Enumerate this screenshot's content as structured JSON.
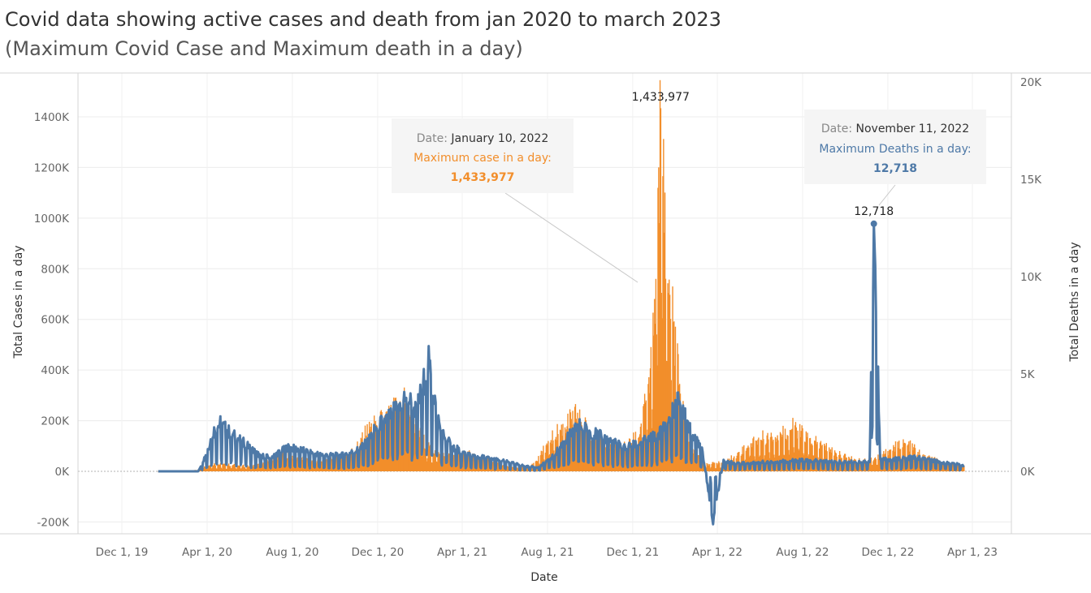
{
  "title": "Covid data showing active cases and death from jan 2020 to march 2023",
  "subtitle": "(Maximum Covid Case and Maximum death in a day)",
  "colors": {
    "cases": "#F28E2B",
    "deaths": "#4E79A7"
  },
  "chart_data": {
    "type": "bar",
    "xlabel": "Date",
    "ylabel": "Total Cases in a day",
    "y2label": "Total Deaths in a day",
    "ylim": [
      -200000,
      1450000
    ],
    "y2lim": [
      -3000,
      20000
    ],
    "x_ticks": [
      "Dec 1, 19",
      "Apr 1, 20",
      "Aug 1, 20",
      "Dec 1, 20",
      "Apr 1, 21",
      "Aug 1, 21",
      "Dec 1, 21",
      "Apr 1, 22",
      "Aug 1, 22",
      "Dec 1, 22",
      "Apr 1, 23"
    ],
    "y_ticks": [
      "-200K",
      "0K",
      "200K",
      "400K",
      "600K",
      "800K",
      "1000K",
      "1200K",
      "1400K"
    ],
    "y2_ticks": [
      "0K",
      "5K",
      "10K",
      "15K",
      "20K"
    ],
    "grid": true,
    "series": [
      {
        "name": "Maximum case in a day",
        "type": "bar",
        "axis": "left",
        "points": [
          [
            "2020-01-22",
            0
          ],
          [
            "2020-03-01",
            500
          ],
          [
            "2020-03-15",
            5000
          ],
          [
            "2020-03-25",
            15000
          ],
          [
            "2020-04-05",
            30000
          ],
          [
            "2020-04-20",
            28000
          ],
          [
            "2020-05-10",
            25000
          ],
          [
            "2020-06-01",
            20000
          ],
          [
            "2020-06-20",
            30000
          ],
          [
            "2020-07-10",
            60000
          ],
          [
            "2020-07-20",
            70000
          ],
          [
            "2020-08-10",
            55000
          ],
          [
            "2020-09-01",
            40000
          ],
          [
            "2020-09-20",
            45000
          ],
          [
            "2020-10-10",
            55000
          ],
          [
            "2020-10-30",
            90000
          ],
          [
            "2020-11-15",
            160000
          ],
          [
            "2020-12-01",
            200000
          ],
          [
            "2020-12-20",
            230000
          ],
          [
            "2021-01-08",
            300000
          ],
          [
            "2021-01-20",
            200000
          ],
          [
            "2021-02-10",
            100000
          ],
          [
            "2021-03-01",
            65000
          ],
          [
            "2021-03-20",
            60000
          ],
          [
            "2021-04-10",
            70000
          ],
          [
            "2021-05-01",
            55000
          ],
          [
            "2021-06-01",
            20000
          ],
          [
            "2021-06-20",
            12000
          ],
          [
            "2021-07-10",
            25000
          ],
          [
            "2021-07-25",
            80000
          ],
          [
            "2021-08-10",
            150000
          ],
          [
            "2021-08-25",
            180000
          ],
          [
            "2021-09-10",
            230000
          ],
          [
            "2021-09-25",
            180000
          ],
          [
            "2021-10-15",
            120000
          ],
          [
            "2021-11-05",
            90000
          ],
          [
            "2021-11-25",
            110000
          ],
          [
            "2021-12-10",
            150000
          ],
          [
            "2021-12-25",
            350000
          ],
          [
            "2022-01-01",
            600000
          ],
          [
            "2022-01-04",
            1000000
          ],
          [
            "2022-01-10",
            1433977
          ],
          [
            "2022-01-14",
            1180000
          ],
          [
            "2022-01-20",
            800000
          ],
          [
            "2022-01-28",
            600000
          ],
          [
            "2022-02-08",
            300000
          ],
          [
            "2022-02-20",
            120000
          ],
          [
            "2022-03-10",
            40000
          ],
          [
            "2022-03-20",
            30000
          ],
          [
            "2022-04-10",
            35000
          ],
          [
            "2022-05-01",
            70000
          ],
          [
            "2022-05-20",
            120000
          ],
          [
            "2022-06-10",
            140000
          ],
          [
            "2022-07-01",
            150000
          ],
          [
            "2022-07-20",
            180000
          ],
          [
            "2022-08-10",
            130000
          ],
          [
            "2022-09-01",
            100000
          ],
          [
            "2022-09-20",
            70000
          ],
          [
            "2022-10-10",
            50000
          ],
          [
            "2022-11-01",
            45000
          ],
          [
            "2022-11-20",
            60000
          ],
          [
            "2022-12-05",
            90000
          ],
          [
            "2022-12-20",
            110000
          ],
          [
            "2023-01-05",
            100000
          ],
          [
            "2023-01-20",
            60000
          ],
          [
            "2023-02-10",
            45000
          ],
          [
            "2023-03-01",
            35000
          ],
          [
            "2023-03-20",
            25000
          ]
        ]
      },
      {
        "name": "Maximum Deaths in a day",
        "type": "line",
        "axis": "right",
        "points": [
          [
            "2020-01-22",
            0
          ],
          [
            "2020-03-20",
            50
          ],
          [
            "2020-04-01",
            1000
          ],
          [
            "2020-04-10",
            2000
          ],
          [
            "2020-04-20",
            2400
          ],
          [
            "2020-05-05",
            1900
          ],
          [
            "2020-05-25",
            1400
          ],
          [
            "2020-06-15",
            800
          ],
          [
            "2020-07-01",
            700
          ],
          [
            "2020-07-25",
            1200
          ],
          [
            "2020-08-10",
            1100
          ],
          [
            "2020-09-01",
            900
          ],
          [
            "2020-09-20",
            800
          ],
          [
            "2020-10-10",
            800
          ],
          [
            "2020-10-30",
            1000
          ],
          [
            "2020-11-15",
            1400
          ],
          [
            "2020-12-01",
            2300
          ],
          [
            "2020-12-20",
            2800
          ],
          [
            "2021-01-12",
            3800
          ],
          [
            "2021-01-25",
            3000
          ],
          [
            "2021-02-12",
            5400
          ],
          [
            "2021-03-01",
            2000
          ],
          [
            "2021-03-20",
            1200
          ],
          [
            "2021-04-10",
            800
          ],
          [
            "2021-05-01",
            700
          ],
          [
            "2021-06-01",
            500
          ],
          [
            "2021-07-01",
            250
          ],
          [
            "2021-07-20",
            200
          ],
          [
            "2021-08-10",
            800
          ],
          [
            "2021-08-25",
            1500
          ],
          [
            "2021-09-15",
            2300
          ],
          [
            "2021-10-01",
            2000
          ],
          [
            "2021-10-25",
            1600
          ],
          [
            "2021-11-20",
            1200
          ],
          [
            "2021-12-10",
            1400
          ],
          [
            "2022-01-05",
            1800
          ],
          [
            "2022-01-20",
            2500
          ],
          [
            "2022-02-05",
            3600
          ],
          [
            "2022-02-20",
            2200
          ],
          [
            "2022-03-10",
            1200
          ],
          [
            "2022-03-25",
            -2500
          ],
          [
            "2022-04-10",
            500
          ],
          [
            "2022-05-01",
            400
          ],
          [
            "2022-06-01",
            450
          ],
          [
            "2022-07-01",
            500
          ],
          [
            "2022-08-01",
            550
          ],
          [
            "2022-09-01",
            500
          ],
          [
            "2022-10-01",
            450
          ],
          [
            "2022-11-05",
            500
          ],
          [
            "2022-11-11",
            12718
          ],
          [
            "2022-11-20",
            600
          ],
          [
            "2022-12-10",
            600
          ],
          [
            "2023-01-10",
            700
          ],
          [
            "2023-02-01",
            550
          ],
          [
            "2023-03-01",
            400
          ],
          [
            "2023-03-20",
            300
          ]
        ]
      }
    ],
    "annotations": [
      {
        "label_value": "1,433,977",
        "date_prefix": "Date:",
        "date": "January 10, 2022",
        "metric_label": "Maximum case in a  day:",
        "metric_value": "1,433,977"
      },
      {
        "label_value": "12,718",
        "date_prefix": "Date:",
        "date": "November 11, 2022",
        "metric_label": "Maximum Deaths in a day:",
        "metric_value": "12,718"
      }
    ]
  }
}
